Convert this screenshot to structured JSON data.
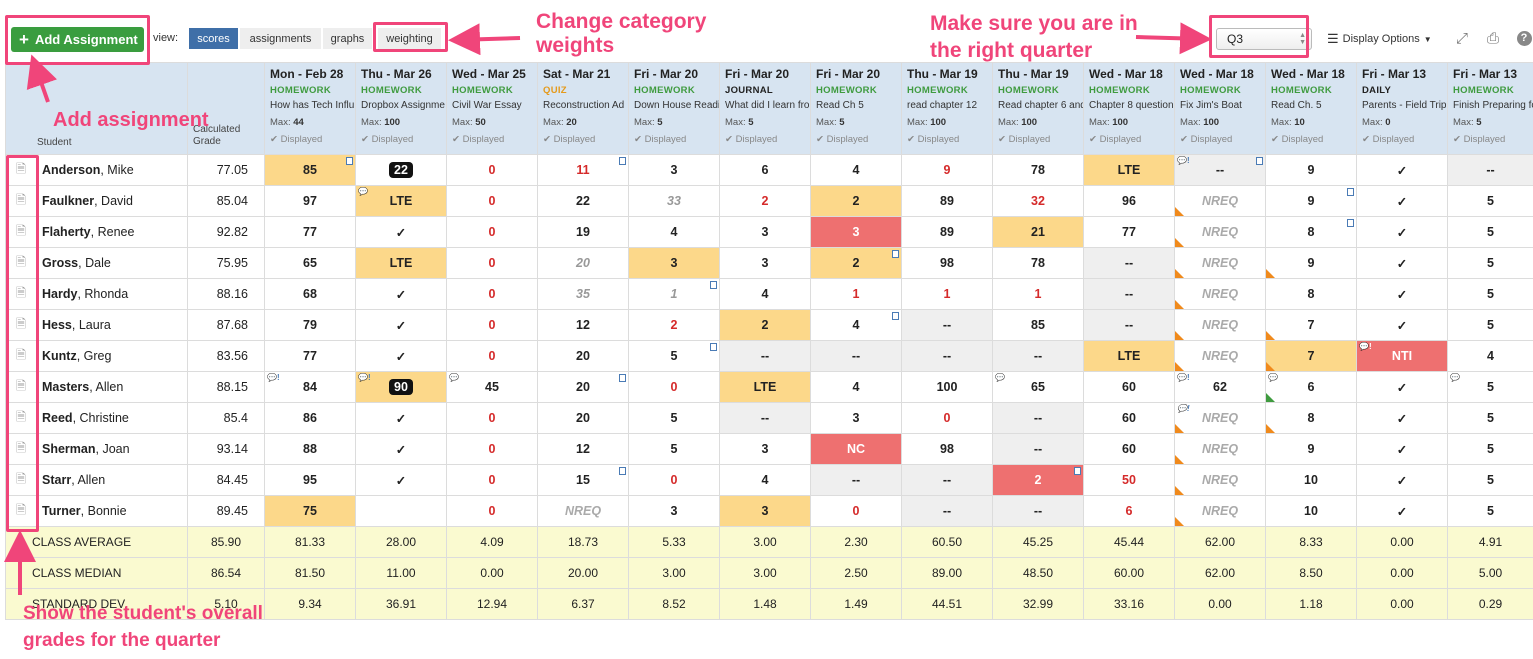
{
  "toolbar": {
    "add_label": "Add Assignment",
    "view_label": "view:",
    "views": [
      "scores",
      "assignments",
      "graphs",
      "weighting"
    ],
    "quarter": "Q3",
    "display_options": "Display Options"
  },
  "table": {
    "student_header": "Student",
    "grade_header_1": "Calculated",
    "grade_header_2": "Grade",
    "max_prefix": "Max:",
    "displayed": "Displayed",
    "assignments": [
      {
        "date": "Mon - Feb 28",
        "cat": "HOMEWORK",
        "title": "How has Tech Influ",
        "max": "44"
      },
      {
        "date": "Thu - Mar 26",
        "cat": "HOMEWORK",
        "title": "Dropbox Assignme",
        "max": "100"
      },
      {
        "date": "Wed - Mar 25",
        "cat": "HOMEWORK",
        "title": "Civil War Essay",
        "max": "50"
      },
      {
        "date": "Sat - Mar 21",
        "cat": "QUIZ",
        "title": "Reconstruction Ad",
        "max": "20"
      },
      {
        "date": "Fri - Mar 20",
        "cat": "HOMEWORK",
        "title": "Down House Readi",
        "max": "5"
      },
      {
        "date": "Fri - Mar 20",
        "cat": "JOURNAL",
        "title": "What did I learn fro",
        "max": "5"
      },
      {
        "date": "Fri - Mar 20",
        "cat": "HOMEWORK",
        "title": "Read Ch 5",
        "max": "5"
      },
      {
        "date": "Thu - Mar 19",
        "cat": "HOMEWORK",
        "title": "read chapter 12",
        "max": "100"
      },
      {
        "date": "Thu - Mar 19",
        "cat": "HOMEWORK",
        "title": "Read chapter 6 and",
        "max": "100"
      },
      {
        "date": "Wed - Mar 18",
        "cat": "HOMEWORK",
        "title": "Chapter 8 question",
        "max": "100"
      },
      {
        "date": "Wed - Mar 18",
        "cat": "HOMEWORK",
        "title": "Fix Jim's Boat",
        "max": "100"
      },
      {
        "date": "Wed - Mar 18",
        "cat": "HOMEWORK",
        "title": "Read Ch. 5",
        "max": "10"
      },
      {
        "date": "Fri - Mar 13",
        "cat": "DAILY",
        "title": "Parents - Field Trip",
        "max": "0"
      },
      {
        "date": "Fri - Mar 13",
        "cat": "HOMEWORK",
        "title": "Finish Preparing fo",
        "max": "5"
      }
    ],
    "students": [
      {
        "last": "Anderson",
        "first": ", Mike",
        "grade": "77.05",
        "scores": [
          "85",
          "22",
          "0",
          "11",
          "3",
          "6",
          "4",
          "9",
          "78",
          "LTE",
          "--",
          "9",
          "✓",
          "--"
        ]
      },
      {
        "last": "Faulkner",
        "first": ", David",
        "grade": "85.04",
        "scores": [
          "97",
          "LTE",
          "0",
          "22",
          "33",
          "2",
          "2",
          "89",
          "32",
          "96",
          "NREQ",
          "9",
          "✓",
          "5"
        ]
      },
      {
        "last": "Flaherty",
        "first": ", Renee",
        "grade": "92.82",
        "scores": [
          "77",
          "✓",
          "0",
          "19",
          "4",
          "3",
          "3",
          "89",
          "21",
          "77",
          "NREQ",
          "8",
          "✓",
          "5"
        ]
      },
      {
        "last": "Gross",
        "first": ", Dale",
        "grade": "75.95",
        "scores": [
          "65",
          "LTE",
          "0",
          "20",
          "3",
          "3",
          "2",
          "98",
          "78",
          "--",
          "NREQ",
          "9",
          "✓",
          "5"
        ]
      },
      {
        "last": "Hardy",
        "first": ", Rhonda",
        "grade": "88.16",
        "scores": [
          "68",
          "✓",
          "0",
          "35",
          "1",
          "4",
          "1",
          "1",
          "1",
          "--",
          "NREQ",
          "8",
          "✓",
          "5"
        ]
      },
      {
        "last": "Hess",
        "first": ", Laura",
        "grade": "87.68",
        "scores": [
          "79",
          "✓",
          "0",
          "12",
          "2",
          "2",
          "4",
          "--",
          "85",
          "--",
          "NREQ",
          "7",
          "✓",
          "5"
        ]
      },
      {
        "last": "Kuntz",
        "first": ", Greg",
        "grade": "83.56",
        "scores": [
          "77",
          "✓",
          "0",
          "20",
          "5",
          "--",
          "--",
          "--",
          "--",
          "LTE",
          "NREQ",
          "7",
          "NTI",
          "4"
        ]
      },
      {
        "last": "Masters",
        "first": ", Allen",
        "grade": "88.15",
        "scores": [
          "84",
          "90",
          "45",
          "20",
          "0",
          "LTE",
          "4",
          "100",
          "65",
          "60",
          "62",
          "6",
          "✓",
          "5"
        ]
      },
      {
        "last": "Reed",
        "first": ", Christine",
        "grade": "85.4",
        "scores": [
          "86",
          "✓",
          "0",
          "20",
          "5",
          "--",
          "3",
          "0",
          "--",
          "60",
          "NREQ",
          "8",
          "✓",
          "5"
        ]
      },
      {
        "last": "Sherman",
        "first": ", Joan",
        "grade": "93.14",
        "scores": [
          "88",
          "✓",
          "0",
          "12",
          "5",
          "3",
          "NC",
          "98",
          "--",
          "60",
          "NREQ",
          "9",
          "✓",
          "5"
        ]
      },
      {
        "last": "Starr",
        "first": ", Allen",
        "grade": "84.45",
        "scores": [
          "95",
          "✓",
          "0",
          "15",
          "0",
          "4",
          "--",
          "--",
          "2",
          "50",
          "NREQ",
          "10",
          "✓",
          "5"
        ]
      },
      {
        "last": "Turner",
        "first": ", Bonnie",
        "grade": "89.45",
        "scores": [
          "75",
          "",
          "0",
          "NREQ",
          "3",
          "3",
          "0",
          "--",
          "--",
          "6",
          "NREQ",
          "10",
          "✓",
          "5"
        ]
      }
    ],
    "stats": [
      {
        "label": "CLASS AVERAGE",
        "grade": "85.90",
        "values": [
          "81.33",
          "28.00",
          "4.09",
          "18.73",
          "5.33",
          "3.00",
          "2.30",
          "60.50",
          "45.25",
          "45.44",
          "62.00",
          "8.33",
          "0.00",
          "4.91"
        ]
      },
      {
        "label": "CLASS MEDIAN",
        "grade": "86.54",
        "values": [
          "81.50",
          "11.00",
          "0.00",
          "20.00",
          "3.00",
          "3.00",
          "2.50",
          "89.00",
          "48.50",
          "60.00",
          "62.00",
          "8.50",
          "0.00",
          "5.00"
        ]
      },
      {
        "label": "STANDARD DEV.",
        "grade": "5.10",
        "values": [
          "9.34",
          "36.91",
          "12.94",
          "6.37",
          "8.52",
          "1.48",
          "1.49",
          "44.51",
          "32.99",
          "33.16",
          "0.00",
          "1.18",
          "0.00",
          "0.29"
        ]
      }
    ]
  },
  "annotations": {
    "weights": "Change category\nweights",
    "quarter": "Make sure you are in\nthe right quarter",
    "add": "Add assignment",
    "overall": "Show the student's overall\ngrades for the quarter"
  },
  "colors": {
    "accent": "#f0457a",
    "header_bg": "#d7e4f1",
    "late": "#fcd88a",
    "low": "#ee7070",
    "add_green": "#3a9d3f",
    "tab_blue": "#3f6fa8"
  }
}
